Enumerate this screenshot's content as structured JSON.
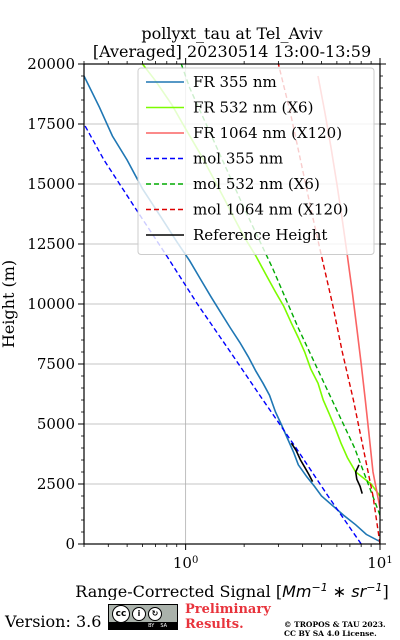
{
  "title_line1": "pollyxt_tau at Tel_Aviv",
  "title_line2": "[Averaged] 20230514 13:00-13:59",
  "footer": {
    "version": "Version: 3.6",
    "preliminary_line1": "Preliminary",
    "preliminary_line2": "Results.",
    "copyright_line1": "© TROPOS & TAU 2023.",
    "copyright_line2": "CC BY SA 4.0 License.",
    "license_badge_by": "BY",
    "license_badge_sa": "SA"
  },
  "chart_data": {
    "type": "line",
    "title": "pollyxt_tau at Tel_Aviv [Averaged] 20230514 13:00-13:59",
    "xlabel": "Range-Corrected Signal [Mm^-1 * sr^-1]",
    "ylabel": "Height (m)",
    "xscale": "log",
    "xlim": [
      0.3,
      10
    ],
    "ylim": [
      0,
      20000
    ],
    "yticks": [
      0,
      2500,
      5000,
      7500,
      10000,
      12500,
      15000,
      17500,
      20000
    ],
    "xticks": [
      1,
      10
    ],
    "grid": true,
    "legend_position": "top-right",
    "series": [
      {
        "name": "FR 355 nm",
        "style": "solid",
        "color": "#1f77b4",
        "points": [
          [
            10.0,
            100
          ],
          [
            8.5,
            400
          ],
          [
            7.5,
            800
          ],
          [
            6.5,
            1200
          ],
          [
            5.0,
            2000
          ],
          [
            4.6,
            2400
          ],
          [
            4.2,
            2800
          ],
          [
            3.8,
            3300
          ],
          [
            3.6,
            3800
          ],
          [
            3.3,
            4500
          ],
          [
            3.1,
            5000
          ],
          [
            2.9,
            5500
          ],
          [
            2.7,
            6200
          ],
          [
            2.5,
            6700
          ],
          [
            2.3,
            7200
          ],
          [
            2.1,
            7800
          ],
          [
            1.9,
            8400
          ],
          [
            1.7,
            9000
          ],
          [
            1.5,
            9700
          ],
          [
            1.35,
            10300
          ],
          [
            1.2,
            11000
          ],
          [
            1.05,
            11800
          ],
          [
            0.9,
            12600
          ],
          [
            0.75,
            13600
          ],
          [
            0.6,
            14800
          ],
          [
            0.5,
            16000
          ],
          [
            0.42,
            17000
          ],
          [
            0.36,
            18200
          ],
          [
            0.3,
            19500
          ]
        ]
      },
      {
        "name": "FR 532 nm (X6)",
        "style": "solid",
        "color": "#7cfc00",
        "points": [
          [
            10.0,
            2000
          ],
          [
            9.0,
            2500
          ],
          [
            7.5,
            3000
          ],
          [
            6.8,
            3600
          ],
          [
            6.3,
            4200
          ],
          [
            5.9,
            4800
          ],
          [
            5.5,
            5400
          ],
          [
            5.1,
            6000
          ],
          [
            4.8,
            6700
          ],
          [
            4.4,
            7300
          ],
          [
            4.1,
            8000
          ],
          [
            3.8,
            8600
          ],
          [
            3.5,
            9200
          ],
          [
            3.2,
            9900
          ],
          [
            2.9,
            10500
          ],
          [
            2.6,
            11200
          ],
          [
            2.3,
            12000
          ],
          [
            2.0,
            12800
          ],
          [
            1.8,
            13500
          ],
          [
            1.6,
            14300
          ],
          [
            1.4,
            15200
          ],
          [
            1.2,
            16200
          ],
          [
            1.0,
            17300
          ],
          [
            0.85,
            18300
          ],
          [
            0.7,
            19300
          ],
          [
            0.6,
            20000
          ]
        ]
      },
      {
        "name": "FR 1064 nm (X120)",
        "style": "solid",
        "color": "#fa6464",
        "points": [
          [
            10.0,
            1500
          ],
          [
            9.2,
            3000
          ],
          [
            8.8,
            4500
          ],
          [
            8.4,
            6000
          ],
          [
            8.0,
            7500
          ],
          [
            7.6,
            9000
          ],
          [
            7.2,
            10500
          ],
          [
            6.8,
            12000
          ],
          [
            6.4,
            13500
          ],
          [
            6.0,
            15000
          ],
          [
            5.6,
            16500
          ],
          [
            5.2,
            18000
          ],
          [
            4.8,
            19500
          ]
        ]
      },
      {
        "name": "mol 355 nm",
        "style": "dashed",
        "color": "#0000ff",
        "points": [
          [
            8.0,
            0
          ],
          [
            5.4,
            2000
          ],
          [
            3.7,
            4000
          ],
          [
            2.5,
            6000
          ],
          [
            1.7,
            8000
          ],
          [
            1.15,
            10000
          ],
          [
            0.8,
            12000
          ],
          [
            0.55,
            14000
          ],
          [
            0.38,
            16000
          ],
          [
            0.3,
            17500
          ]
        ]
      },
      {
        "name": "mol 532 nm (X6)",
        "style": "dashed",
        "color": "#00aa00",
        "points": [
          [
            10.0,
            1200
          ],
          [
            7.4,
            4000
          ],
          [
            5.3,
            6500
          ],
          [
            3.8,
            9000
          ],
          [
            2.8,
            11500
          ],
          [
            2.0,
            14000
          ],
          [
            1.45,
            16500
          ],
          [
            1.05,
            19000
          ],
          [
            0.95,
            20000
          ]
        ]
      },
      {
        "name": "mol 1064 nm (X120)",
        "style": "dashed",
        "color": "#dd0000",
        "points": [
          [
            10.0,
            0
          ],
          [
            9.2,
            2000
          ],
          [
            8.2,
            4000
          ],
          [
            7.3,
            6000
          ],
          [
            6.4,
            8000
          ],
          [
            5.7,
            10000
          ],
          [
            5.0,
            12000
          ],
          [
            4.4,
            14000
          ],
          [
            3.9,
            16000
          ],
          [
            3.45,
            18000
          ],
          [
            3.0,
            20000
          ]
        ]
      },
      {
        "name": "Reference Height",
        "style": "solid",
        "color": "#000000",
        "segments": [
          [
            [
              3.5,
              4200
            ],
            [
              3.7,
              3900
            ],
            [
              3.9,
              3500
            ],
            [
              4.1,
              3200
            ],
            [
              4.3,
              2900
            ],
            [
              4.5,
              2600
            ]
          ],
          [
            [
              7.8,
              3300
            ],
            [
              7.5,
              3000
            ],
            [
              7.6,
              2700
            ],
            [
              7.9,
              2400
            ],
            [
              8.1,
              2100
            ]
          ]
        ]
      }
    ]
  }
}
